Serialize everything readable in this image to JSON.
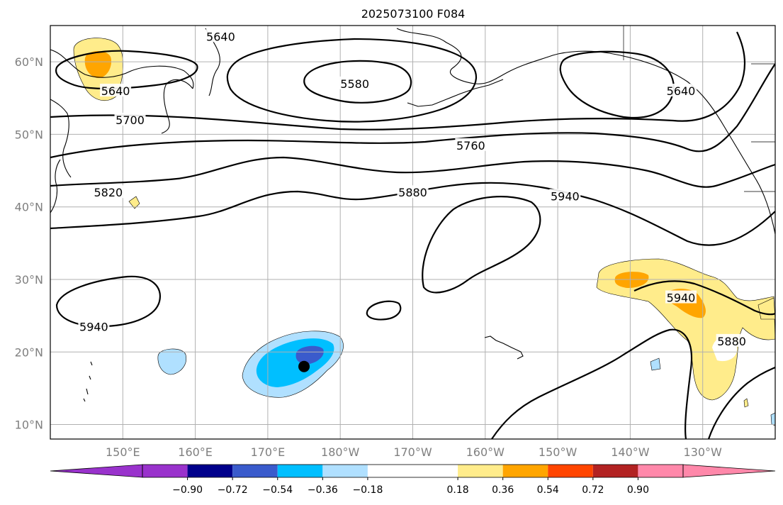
{
  "title": "2025073100 F084",
  "map": {
    "lon_range_east_deg": [
      140,
      240
    ],
    "lat_range": [
      8,
      65
    ],
    "lon_gridlines_east_deg": [
      150,
      160,
      170,
      180,
      190,
      200,
      210,
      220,
      230
    ],
    "lat_gridlines": [
      10,
      20,
      30,
      40,
      50,
      60
    ],
    "x_tick_labels": [
      "150°E",
      "160°E",
      "170°E",
      "180°W",
      "170°W",
      "160°W",
      "150°W",
      "140°W",
      "130°W"
    ],
    "y_tick_labels": [
      "10°N",
      "20°N",
      "30°N",
      "40°N",
      "50°N",
      "60°N"
    ],
    "grid": true,
    "projection": "PlateCarree"
  },
  "contours": {
    "field": "500 hPa geopotential height (m)",
    "labels": [
      {
        "text": "5640",
        "lon": 163.5,
        "lat": 63.5
      },
      {
        "text": "5640",
        "lon": 149,
        "lat": 56
      },
      {
        "text": "5580",
        "lon": 182,
        "lat": 57
      },
      {
        "text": "5640",
        "lon": 227,
        "lat": 56
      },
      {
        "text": "5700",
        "lon": 151,
        "lat": 52
      },
      {
        "text": "5760",
        "lon": 198,
        "lat": 48.5
      },
      {
        "text": "5820",
        "lon": 148,
        "lat": 42
      },
      {
        "text": "5880",
        "lon": 190,
        "lat": 42
      },
      {
        "text": "5940",
        "lon": 211,
        "lat": 41.5
      },
      {
        "text": "5940",
        "lon": 146,
        "lat": 23.5
      },
      {
        "text": "5940",
        "lon": 227,
        "lat": 27.5
      },
      {
        "text": "5880",
        "lon": 234,
        "lat": 21.5
      }
    ]
  },
  "colorbar": {
    "ticks": [
      "−0.90",
      "−0.72",
      "−0.54",
      "−0.36",
      "−0.18",
      "0.18",
      "0.36",
      "0.54",
      "0.72",
      "0.90"
    ],
    "bins": [
      {
        "from": null,
        "to": -0.9,
        "color": "#9932CC"
      },
      {
        "from": -1.08,
        "to": -0.9,
        "color": "#9932CC"
      },
      {
        "from": -0.9,
        "to": -0.72,
        "color": "#00008B"
      },
      {
        "from": -0.72,
        "to": -0.54,
        "color": "#3A5BCC"
      },
      {
        "from": -0.54,
        "to": -0.36,
        "color": "#00BFFF"
      },
      {
        "from": -0.36,
        "to": -0.18,
        "color": "#B0E0FF"
      },
      {
        "from": -0.18,
        "to": 0.18,
        "color": "#FFFFFF"
      },
      {
        "from": 0.18,
        "to": 0.36,
        "color": "#FFEC8B"
      },
      {
        "from": 0.36,
        "to": 0.54,
        "color": "#FFA500"
      },
      {
        "from": 0.54,
        "to": 0.72,
        "color": "#FF4500"
      },
      {
        "from": 0.72,
        "to": 0.9,
        "color": "#B22222"
      },
      {
        "from": 0.9,
        "to": 1.08,
        "color": "#FF88AA"
      },
      {
        "from": 0.9,
        "to": null,
        "color": "#FF88AA"
      }
    ],
    "extend": "both"
  },
  "marker": {
    "lon": 175,
    "lat": 18,
    "color": "#000000",
    "shape": "circle"
  },
  "colors": {
    "contour_line": "#000000",
    "gridline": "#b0b0b0",
    "tick_label": "#7f7f7f"
  }
}
